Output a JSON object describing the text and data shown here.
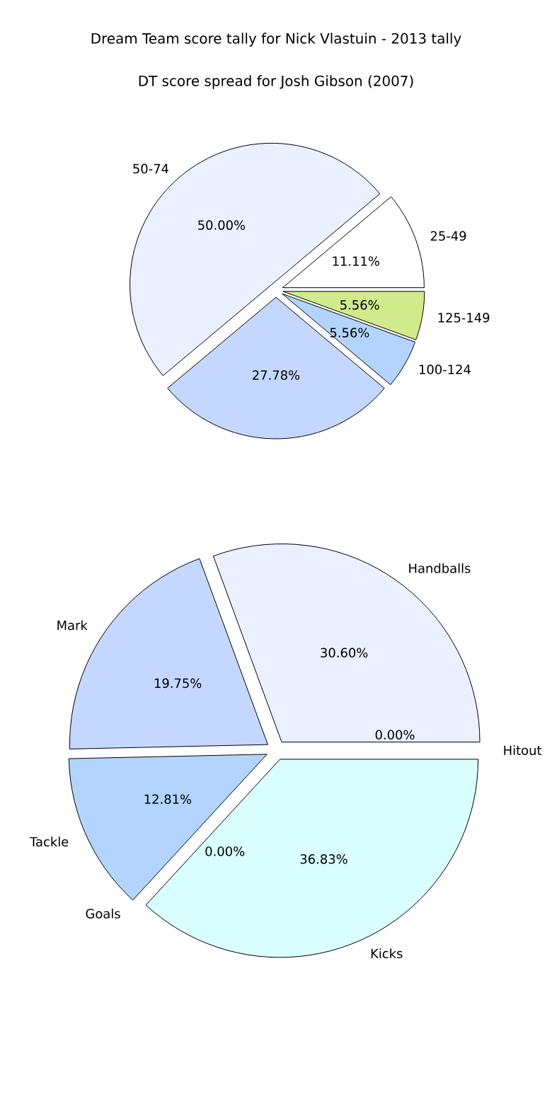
{
  "chart_data": [
    {
      "type": "pie",
      "title": "Dream Team score tally for Nick Vlastuin - 2013 tally",
      "categories": [
        "50-74",
        null,
        "100-124",
        "125-149",
        "25-49"
      ],
      "values": [
        50.0,
        27.78,
        5.56,
        5.56,
        11.11
      ],
      "value_labels": [
        "50.00%",
        "27.78%",
        "5.56%",
        "5.56%",
        "11.11%"
      ],
      "colors": [
        "#eaf0ff",
        "#c4d8ff",
        "#b3d4ff",
        "#d0ea8c",
        "#ffffff"
      ]
    },
    {
      "type": "pie",
      "title": "DT score spread for Josh Gibson (2007)",
      "categories": [
        "Handballs",
        "Mark",
        "Tackle",
        "Goals",
        "Kicks",
        "Hitout"
      ],
      "values": [
        30.6,
        19.75,
        12.81,
        0.0,
        36.83,
        0.0
      ],
      "value_labels": [
        "30.60%",
        "19.75%",
        "12.81%",
        "0.00%",
        "36.83%",
        "0.00%"
      ],
      "colors": [
        "#eaf0ff",
        "#c4d8ff",
        "#b3d4ff",
        "#ffe0e0",
        "#d9ffff",
        "#e0e0e0"
      ]
    }
  ]
}
